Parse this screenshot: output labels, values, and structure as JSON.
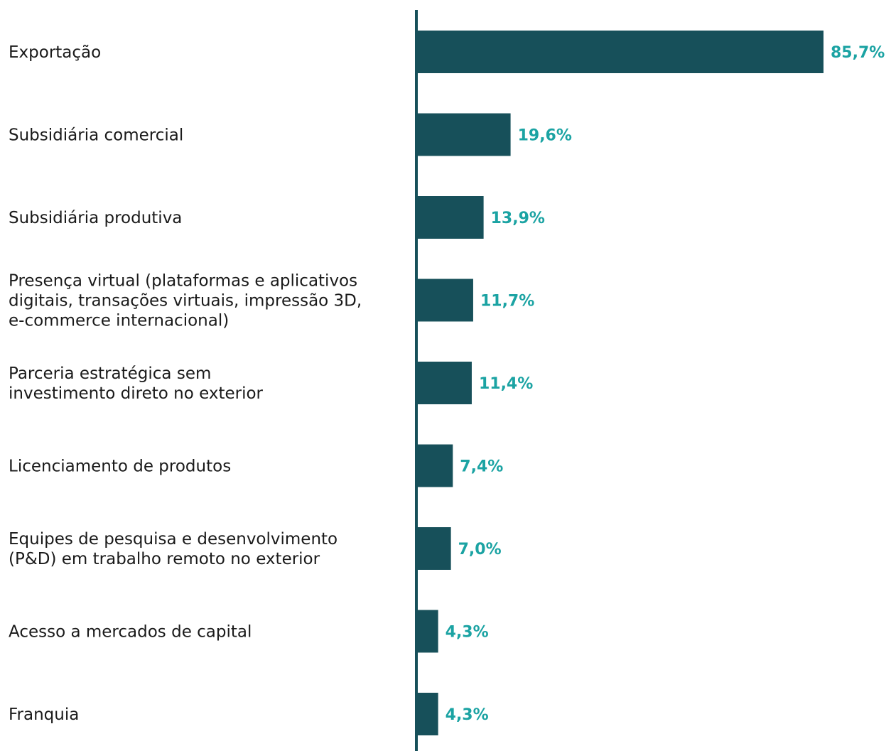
{
  "chart_data": {
    "type": "bar",
    "orientation": "horizontal",
    "title": "",
    "xlabel": "",
    "ylabel": "",
    "grid": false,
    "legend": "none",
    "xlim": [
      0,
      85.7
    ],
    "categories": [
      [
        "Exportação"
      ],
      [
        "Subsidiária comercial"
      ],
      [
        "Subsidiária produtiva"
      ],
      [
        "Presença virtual (plataformas e aplicativos",
        "digitais, transações virtuais, impressão 3D,",
        "e-commerce internacional)"
      ],
      [
        "Parceria estratégica sem",
        "investimento direto no exterior"
      ],
      [
        "Licenciamento de produtos"
      ],
      [
        "Equipes de pesquisa e desenvolvimento",
        "(P&D) em trabalho remoto no exterior"
      ],
      [
        "Acesso a mercados de capital"
      ],
      [
        "Franquia"
      ]
    ],
    "values": [
      85.7,
      19.6,
      13.9,
      11.7,
      11.4,
      7.4,
      7.0,
      4.3,
      4.3
    ],
    "value_labels": [
      "85,7%",
      "19,6%",
      "13,9%",
      "11,7%",
      "11,4%",
      "7,4%",
      "7,0%",
      "4,3%",
      "4,3%"
    ],
    "colors": {
      "bar": "#17505a",
      "value_label": "#1ba3a3",
      "axis": "#17505a",
      "category_label": "#1a1a1a"
    }
  }
}
